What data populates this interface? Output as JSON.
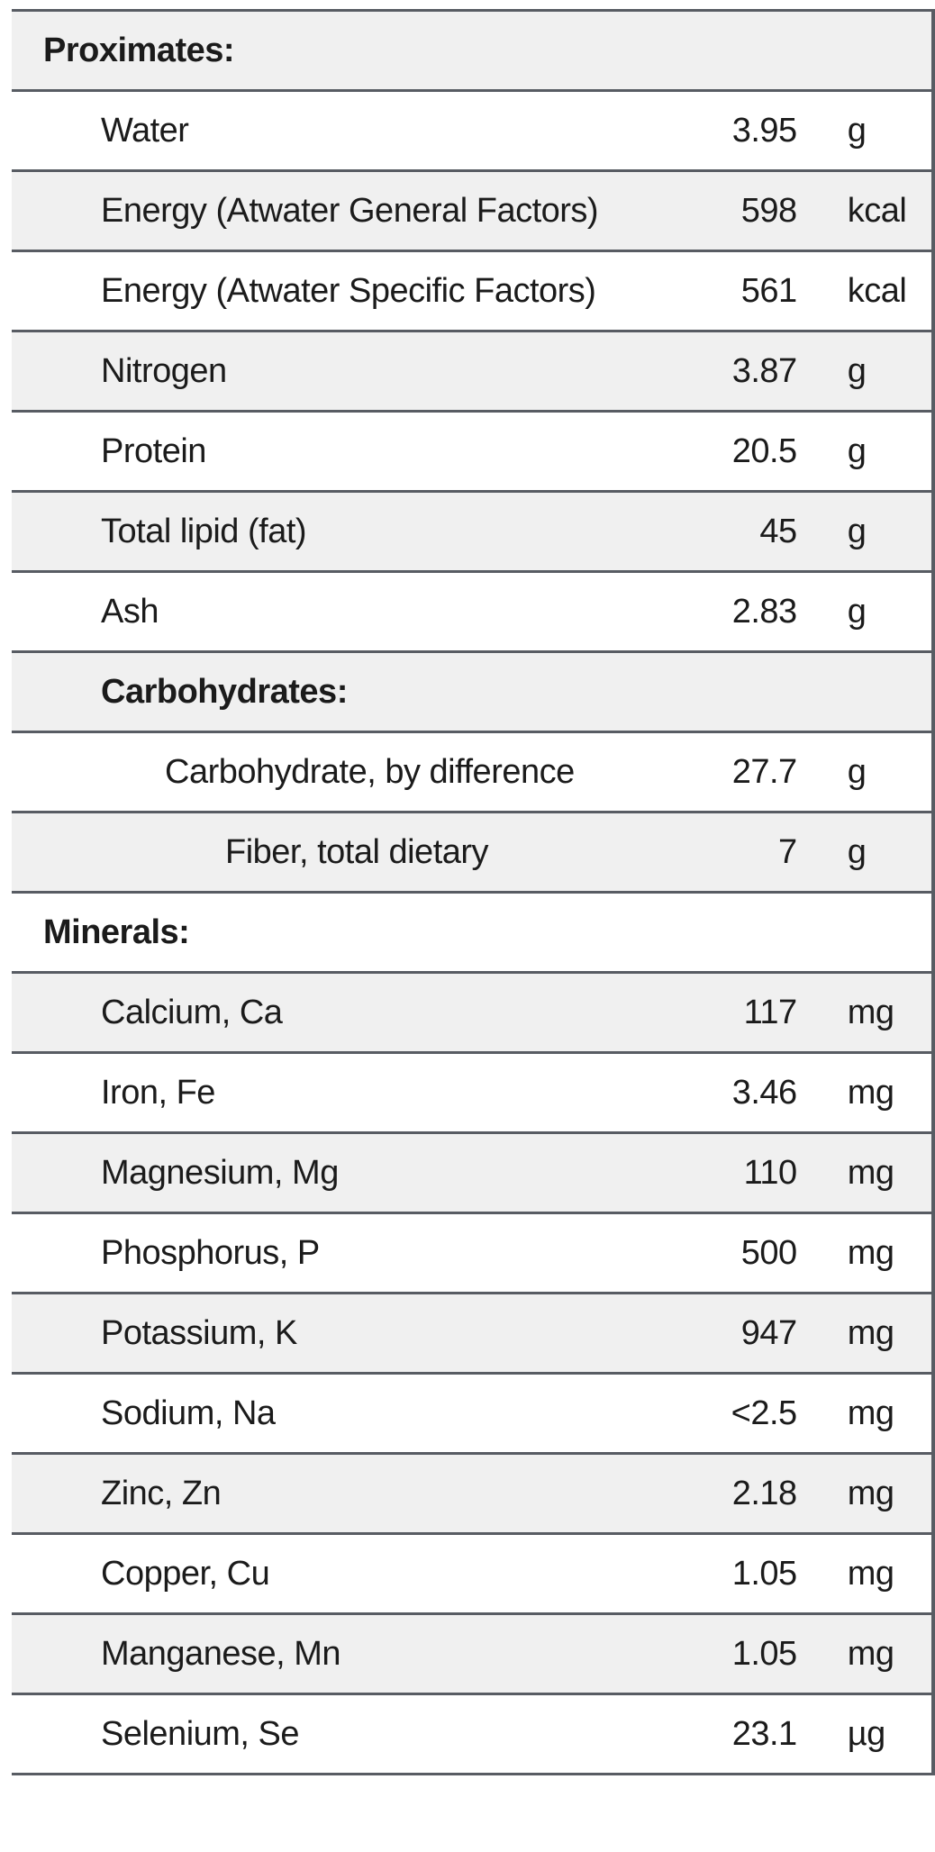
{
  "colors": {
    "background": "#ffffff",
    "row-stripe": "#f0f0f0",
    "row-white": "#ffffff",
    "border": "#585c63",
    "text": "#1b1b1b"
  },
  "table": {
    "rows": [
      {
        "label": "Proximates:",
        "value": "",
        "unit": "",
        "level": 0,
        "section": true
      },
      {
        "label": "Water",
        "value": "3.95",
        "unit": "g",
        "level": 1
      },
      {
        "label": "Energy (Atwater General Factors)",
        "value": "598",
        "unit": "kcal",
        "level": 1
      },
      {
        "label": "Energy (Atwater Specific Factors)",
        "value": "561",
        "unit": "kcal",
        "level": 1
      },
      {
        "label": "Nitrogen",
        "value": "3.87",
        "unit": "g",
        "level": 1
      },
      {
        "label": "Protein",
        "value": "20.5",
        "unit": "g",
        "level": 1
      },
      {
        "label": "Total lipid (fat)",
        "value": "45",
        "unit": "g",
        "level": 1
      },
      {
        "label": "Ash",
        "value": "2.83",
        "unit": "g",
        "level": 1
      },
      {
        "label": "Carbohydrates:",
        "value": "",
        "unit": "",
        "level": 1,
        "section": true
      },
      {
        "label": "Carbohydrate, by difference",
        "value": "27.7",
        "unit": "g",
        "level": 2
      },
      {
        "label": "Fiber, total dietary",
        "value": "7",
        "unit": "g",
        "level": 3
      },
      {
        "label": "Minerals:",
        "value": "",
        "unit": "",
        "level": 0,
        "section": true
      },
      {
        "label": "Calcium, Ca",
        "value": "117",
        "unit": "mg",
        "level": 1
      },
      {
        "label": "Iron, Fe",
        "value": "3.46",
        "unit": "mg",
        "level": 1
      },
      {
        "label": "Magnesium, Mg",
        "value": "110",
        "unit": "mg",
        "level": 1
      },
      {
        "label": "Phosphorus, P",
        "value": "500",
        "unit": "mg",
        "level": 1
      },
      {
        "label": "Potassium, K",
        "value": "947",
        "unit": "mg",
        "level": 1
      },
      {
        "label": "Sodium, Na",
        "value": "<2.5",
        "unit": "mg",
        "level": 1
      },
      {
        "label": "Zinc, Zn",
        "value": "2.18",
        "unit": "mg",
        "level": 1
      },
      {
        "label": "Copper, Cu",
        "value": "1.05",
        "unit": "mg",
        "level": 1
      },
      {
        "label": "Manganese, Mn",
        "value": "1.05",
        "unit": "mg",
        "level": 1
      },
      {
        "label": "Selenium, Se",
        "value": "23.1",
        "unit": "µg",
        "level": 1
      }
    ]
  }
}
